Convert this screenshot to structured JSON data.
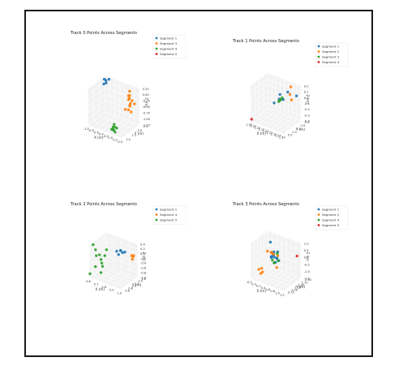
{
  "chart_data": [
    {
      "type": "scatter",
      "title": "Track 0 Points Across Segments",
      "xlabel": "X (m)",
      "ylabel": "Y (m)",
      "zlabel": "Z (m)",
      "xlim": [
        -1.0,
        0.4
      ],
      "ylim": [
        1.0,
        2.5
      ],
      "zlim": [
        -1.25,
        0.25
      ],
      "x_ticks": [
        "-1.0",
        "-0.8",
        "-0.6",
        "-0.4",
        "-0.2",
        "0.0",
        "0.2",
        "0.4"
      ],
      "y_ticks": [
        "1.0",
        "1.5",
        "2.0",
        "2.5"
      ],
      "z_ticks": [
        "0.25",
        "0.00",
        "-0.25",
        "-0.50",
        "-0.75",
        "-1.00",
        "-1.25"
      ],
      "grid": true,
      "legend_position": "top-right",
      "series": [
        {
          "name": "Segment 1",
          "color": "#1f77b4",
          "points": [
            [
              -0.95,
              2.3,
              0.2
            ],
            [
              -0.9,
              2.35,
              0.15
            ],
            [
              -0.85,
              2.25,
              0.1
            ],
            [
              -0.8,
              2.4,
              0.22
            ],
            [
              -0.92,
              2.2,
              0.05
            ]
          ]
        },
        {
          "name": "Segment 3",
          "color": "#ff7f0e",
          "points": [
            [
              0.1,
              2.3,
              0.1
            ],
            [
              0.15,
              2.1,
              0.0
            ],
            [
              0.2,
              2.0,
              -0.1
            ],
            [
              0.25,
              2.2,
              -0.2
            ],
            [
              0.3,
              1.9,
              -0.3
            ],
            [
              0.18,
              2.15,
              -0.4
            ],
            [
              0.22,
              1.95,
              -0.5
            ],
            [
              0.28,
              2.05,
              -0.6
            ],
            [
              0.12,
              2.25,
              -0.05
            ],
            [
              0.35,
              1.85,
              -0.15
            ],
            [
              0.05,
              2.4,
              -0.25
            ],
            [
              0.3,
              2.3,
              -0.35
            ],
            [
              0.16,
              1.8,
              -0.45
            ]
          ]
        },
        {
          "name": "Segment 4",
          "color": "#2ca02c",
          "points": [
            [
              -0.1,
              1.3,
              -1.1
            ],
            [
              -0.05,
              1.2,
              -1.15
            ],
            [
              0.0,
              1.25,
              -1.05
            ],
            [
              0.05,
              1.15,
              -1.2
            ],
            [
              -0.08,
              1.35,
              -1.0
            ],
            [
              0.02,
              1.1,
              -1.12
            ],
            [
              -0.12,
              1.22,
              -1.18
            ],
            [
              0.06,
              1.28,
              -1.08
            ]
          ]
        },
        {
          "name": "Segment 5",
          "color": "#d62728",
          "points": []
        }
      ]
    },
    {
      "type": "scatter",
      "title": "Track 1 Points Across Segments",
      "xlabel": "X (m)",
      "ylabel": "Y (m)",
      "zlabel": "Z (m)",
      "xlim": [
        1.0,
        1.4
      ],
      "ylim": [
        0.5,
        2.5
      ],
      "zlim": [
        -0.4,
        0.2
      ],
      "x_ticks": [
        "1.00",
        "1.05",
        "1.10",
        "1.15",
        "1.20",
        "1.25",
        "1.30",
        "1.35",
        "1.40"
      ],
      "y_ticks": [
        "0.5",
        "1.0",
        "1.5",
        "2.0",
        "2.5"
      ],
      "z_ticks": [
        "0.2",
        "0.1",
        "0.0",
        "-0.1",
        "-0.2",
        "-0.3",
        "-0.4"
      ],
      "grid": true,
      "legend_position": "top-right",
      "series": [
        {
          "name": "Segment 1",
          "color": "#1f77b4",
          "points": [
            [
              1.2,
              2.0,
              0.0
            ],
            [
              1.25,
              1.9,
              -0.05
            ],
            [
              1.18,
              2.1,
              -0.1
            ],
            [
              1.38,
              2.2,
              0.05
            ],
            [
              1.15,
              1.8,
              -0.15
            ],
            [
              1.3,
              1.95,
              0.1
            ]
          ]
        },
        {
          "name": "Segment 2",
          "color": "#ff7f0e",
          "points": [
            [
              1.3,
              2.3,
              0.15
            ],
            [
              1.32,
              2.2,
              -0.05
            ],
            [
              1.28,
              2.4,
              0.0
            ]
          ]
        },
        {
          "name": "Segment 3",
          "color": "#2ca02c",
          "points": [
            [
              1.2,
              2.0,
              -0.1
            ],
            [
              1.22,
              2.05,
              -0.05
            ],
            [
              1.19,
              1.95,
              -0.12
            ],
            [
              1.21,
              2.02,
              -0.08
            ]
          ]
        },
        {
          "name": "Segment 4",
          "color": "#d62728",
          "points": [
            [
              1.0,
              0.6,
              -0.38
            ]
          ]
        }
      ]
    },
    {
      "type": "scatter",
      "title": "Track 2 Points Across Segments",
      "xlabel": "X (m)",
      "ylabel": "Y (m)",
      "zlabel": "Z (m)",
      "xlim": [
        0.6,
        1.0
      ],
      "ylim": [
        0.6,
        1.6
      ],
      "zlim": [
        -1.0,
        0.4
      ],
      "x_ticks": [
        "0.6",
        "0.7",
        "0.8",
        "0.9",
        "1.0"
      ],
      "y_ticks": [
        "0.6",
        "0.8",
        "1.0",
        "1.2",
        "1.4",
        "1.6"
      ],
      "z_ticks": [
        "0.4",
        "0.2",
        "0.0",
        "-0.2",
        "-0.4",
        "-0.6",
        "-0.8",
        "-1.0"
      ],
      "grid": true,
      "legend_position": "top-right",
      "series": [
        {
          "name": "Segment 1",
          "color": "#1f77b4",
          "points": [
            [
              0.85,
              1.3,
              0.1
            ],
            [
              0.88,
              1.28,
              0.05
            ],
            [
              0.9,
              1.32,
              0.08
            ],
            [
              0.86,
              1.25,
              0.12
            ],
            [
              0.8,
              1.3,
              0.0
            ],
            [
              0.84,
              1.22,
              -0.05
            ]
          ]
        },
        {
          "name": "Segment 4",
          "color": "#ff7f0e",
          "points": [
            [
              0.95,
              1.5,
              -0.1
            ],
            [
              0.97,
              1.45,
              -0.2
            ],
            [
              0.96,
              1.55,
              -0.15
            ],
            [
              0.98,
              1.48,
              -0.05
            ]
          ]
        },
        {
          "name": "Segment 5",
          "color": "#2ca02c",
          "points": [
            [
              0.62,
              0.7,
              0.35
            ],
            [
              0.63,
              0.8,
              0.1
            ],
            [
              0.65,
              0.75,
              -0.1
            ],
            [
              0.68,
              0.9,
              -0.3
            ],
            [
              0.66,
              0.65,
              -0.5
            ],
            [
              0.7,
              0.85,
              -0.4
            ],
            [
              0.64,
              1.0,
              -0.2
            ],
            [
              0.72,
              0.7,
              -0.7
            ],
            [
              0.6,
              0.6,
              -0.85
            ],
            [
              0.75,
              0.8,
              0.0
            ],
            [
              0.69,
              0.95,
              -0.6
            ],
            [
              0.71,
              1.1,
              0.05
            ]
          ]
        }
      ]
    },
    {
      "type": "scatter",
      "title": "Track 3 Points Across Segments",
      "xlabel": "X (m)",
      "ylabel": "Y (m)",
      "zlabel": "Z (m)",
      "xlim": [
        -0.2,
        1.2
      ],
      "ylim": [
        0.75,
        2.0
      ],
      "zlim": [
        -1.5,
        1.0
      ],
      "x_ticks": [
        "-0.2",
        "0.0",
        "0.2",
        "0.4",
        "0.6",
        "0.8",
        "1.0",
        "1.2"
      ],
      "y_ticks": [
        "0.75",
        "1.00",
        "1.25",
        "1.50",
        "1.75",
        "2.00"
      ],
      "z_ticks": [
        "1.0",
        "0.5",
        "0.0",
        "-0.5",
        "-1.0",
        "-1.5"
      ],
      "grid": true,
      "legend_position": "top-right",
      "series": [
        {
          "name": "Segment 1",
          "color": "#1f77b4",
          "points": [
            [
              0.2,
              1.5,
              0.8
            ],
            [
              0.4,
              1.4,
              0.1
            ],
            [
              0.45,
              1.35,
              0.0
            ],
            [
              0.5,
              1.45,
              -0.1
            ],
            [
              0.35,
              1.5,
              0.2
            ],
            [
              0.55,
              1.38,
              -0.05
            ],
            [
              0.42,
              1.3,
              0.15
            ],
            [
              0.6,
              1.42,
              -0.2
            ],
            [
              0.38,
              1.25,
              0.05
            ],
            [
              0.48,
              1.55,
              0.25
            ],
            [
              0.52,
              1.32,
              -0.3
            ],
            [
              0.3,
              1.4,
              -0.15
            ]
          ]
        },
        {
          "name": "Segment 2",
          "color": "#ff7f0e",
          "points": [
            [
              0.0,
              1.0,
              -0.9
            ],
            [
              0.1,
              1.1,
              -1.1
            ],
            [
              0.25,
              1.2,
              0.4
            ],
            [
              0.35,
              1.3,
              0.3
            ],
            [
              0.5,
              1.2,
              0.35
            ],
            [
              0.6,
              1.35,
              0.2
            ],
            [
              0.15,
              0.95,
              -0.7
            ],
            [
              0.7,
              1.1,
              -0.4
            ],
            [
              0.45,
              1.15,
              0.5
            ],
            [
              0.05,
              1.05,
              -1.2
            ]
          ]
        },
        {
          "name": "Segment 4",
          "color": "#2ca02c",
          "points": [
            [
              0.4,
              1.3,
              -0.2
            ],
            [
              0.5,
              1.25,
              -0.3
            ],
            [
              0.55,
              1.4,
              0.3
            ],
            [
              0.45,
              1.35,
              -0.4
            ],
            [
              0.65,
              1.3,
              -0.1
            ]
          ]
        },
        {
          "name": "Segment 5",
          "color": "#d62728",
          "points": [
            [
              1.1,
              1.9,
              0.1
            ]
          ]
        }
      ]
    }
  ]
}
